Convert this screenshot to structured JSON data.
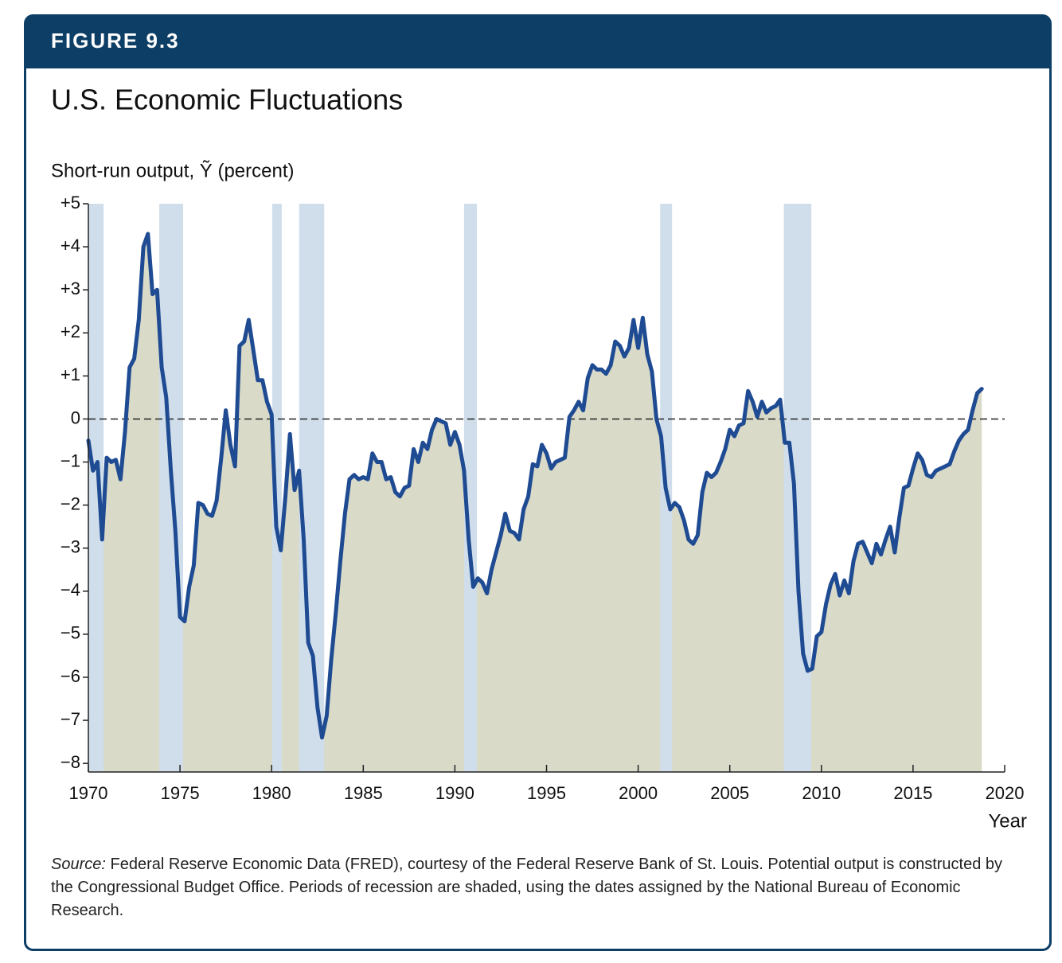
{
  "chart_data": {
    "type": "line",
    "figure_label": "FIGURE 9.3",
    "title": "U.S. Economic Fluctuations",
    "y_label": "Short-run output, Ỹ (percent)",
    "x_label": "Year",
    "source_label": "Source:",
    "source_note": "Federal Reserve Economic Data (FRED), courtesy of the Federal Reserve Bank of St. Louis. Potential output is constructed by the Congressional Budget Office. Periods of recession are shaded, using the dates assigned by the National Bureau of Economic Research.",
    "xlim": [
      1970,
      2020
    ],
    "xticks": [
      1970,
      1975,
      1980,
      1985,
      1990,
      1995,
      2000,
      2005,
      2010,
      2015,
      2020
    ],
    "ylim": [
      -8.2,
      5
    ],
    "yticks": [
      {
        "value": 5,
        "label": "+5"
      },
      {
        "value": 4,
        "label": "+4"
      },
      {
        "value": 3,
        "label": "+3"
      },
      {
        "value": 2,
        "label": "+2"
      },
      {
        "value": 1,
        "label": "+1"
      },
      0,
      {
        "value": -1,
        "label": "−1"
      },
      {
        "value": -2,
        "label": "−2"
      },
      {
        "value": -3,
        "label": "−3"
      },
      {
        "value": -4,
        "label": "−4"
      },
      {
        "value": -5,
        "label": "−5"
      },
      {
        "value": -6,
        "label": "−6"
      },
      {
        "value": -7,
        "label": "−7"
      },
      {
        "value": -8,
        "label": "−8"
      }
    ],
    "recessions": [
      [
        1970,
        1970.83
      ],
      [
        1973.87,
        1975.17
      ],
      [
        1980.03,
        1980.55
      ],
      [
        1981.5,
        1982.87
      ],
      [
        1990.5,
        1991.2
      ],
      [
        2001.2,
        2001.85
      ],
      [
        2007.95,
        2009.45
      ]
    ],
    "recession_color": "#cfdeea",
    "area_color": "#d9dac8",
    "color": "#1f4b93",
    "x": [
      1970,
      1970.25,
      1970.5,
      1970.75,
      1971,
      1971.25,
      1971.5,
      1971.75,
      1972,
      1972.25,
      1972.5,
      1972.75,
      1973,
      1973.25,
      1973.5,
      1973.75,
      1974,
      1974.25,
      1974.5,
      1974.75,
      1975,
      1975.25,
      1975.5,
      1975.75,
      1976,
      1976.25,
      1976.5,
      1976.75,
      1977,
      1977.25,
      1977.5,
      1977.75,
      1978,
      1978.25,
      1978.5,
      1978.75,
      1979,
      1979.25,
      1979.5,
      1979.75,
      1980,
      1980.25,
      1980.5,
      1980.75,
      1981,
      1981.25,
      1981.5,
      1981.75,
      1982,
      1982.25,
      1982.5,
      1982.75,
      1983,
      1983.25,
      1983.5,
      1983.75,
      1984,
      1984.25,
      1984.5,
      1984.75,
      1985,
      1985.25,
      1985.5,
      1985.75,
      1986,
      1986.25,
      1986.5,
      1986.75,
      1987,
      1987.25,
      1987.5,
      1987.75,
      1988,
      1988.25,
      1988.5,
      1988.75,
      1989,
      1989.25,
      1989.5,
      1989.75,
      1990,
      1990.25,
      1990.5,
      1990.75,
      1991,
      1991.25,
      1991.5,
      1991.75,
      1992,
      1992.25,
      1992.5,
      1992.75,
      1993,
      1993.25,
      1993.5,
      1993.75,
      1994,
      1994.25,
      1994.5,
      1994.75,
      1995,
      1995.25,
      1995.5,
      1995.75,
      1996,
      1996.25,
      1996.5,
      1996.75,
      1997,
      1997.25,
      1997.5,
      1997.75,
      1998,
      1998.25,
      1998.5,
      1998.75,
      1999,
      1999.25,
      1999.5,
      1999.75,
      2000,
      2000.25,
      2000.5,
      2000.75,
      2001,
      2001.25,
      2001.5,
      2001.75,
      2002,
      2002.25,
      2002.5,
      2002.75,
      2003,
      2003.25,
      2003.5,
      2003.75,
      2004,
      2004.25,
      2004.5,
      2004.75,
      2005,
      2005.25,
      2005.5,
      2005.75,
      2006,
      2006.25,
      2006.5,
      2006.75,
      2007,
      2007.25,
      2007.5,
      2007.75,
      2008,
      2008.25,
      2008.5,
      2008.75,
      2009,
      2009.25,
      2009.5,
      2009.75,
      2010,
      2010.25,
      2010.5,
      2010.75,
      2011,
      2011.25,
      2011.5,
      2011.75,
      2012,
      2012.25,
      2012.5,
      2012.75,
      2013,
      2013.25,
      2013.5,
      2013.75,
      2014,
      2014.25,
      2014.5,
      2014.75,
      2015,
      2015.25,
      2015.5,
      2015.75,
      2016,
      2016.25,
      2016.5,
      2016.75,
      2017,
      2017.25,
      2017.5,
      2017.75,
      2018,
      2018.25,
      2018.5,
      2018.75
    ],
    "values": [
      -0.5,
      -1.2,
      -1.0,
      -2.8,
      -0.9,
      -1.0,
      -0.95,
      -1.4,
      -0.3,
      1.2,
      1.4,
      2.3,
      4.0,
      4.3,
      2.9,
      3.0,
      1.2,
      0.5,
      -1.2,
      -2.6,
      -4.6,
      -4.7,
      -3.9,
      -3.4,
      -1.95,
      -2.0,
      -2.2,
      -2.25,
      -1.9,
      -0.9,
      0.2,
      -0.6,
      -1.1,
      1.7,
      1.8,
      2.3,
      1.6,
      0.9,
      0.9,
      0.4,
      0.1,
      -2.5,
      -3.05,
      -1.8,
      -0.35,
      -1.65,
      -1.2,
      -2.8,
      -5.2,
      -5.5,
      -6.7,
      -7.4,
      -6.9,
      -5.6,
      -4.5,
      -3.3,
      -2.2,
      -1.4,
      -1.3,
      -1.4,
      -1.35,
      -1.4,
      -0.8,
      -1.0,
      -1.0,
      -1.4,
      -1.35,
      -1.7,
      -1.8,
      -1.6,
      -1.55,
      -0.7,
      -1.0,
      -0.55,
      -0.7,
      -0.25,
      0.0,
      -0.05,
      -0.1,
      -0.6,
      -0.3,
      -0.6,
      -1.2,
      -2.8,
      -3.9,
      -3.7,
      -3.8,
      -4.05,
      -3.5,
      -3.1,
      -2.7,
      -2.2,
      -2.6,
      -2.65,
      -2.8,
      -2.1,
      -1.8,
      -1.05,
      -1.1,
      -0.6,
      -0.8,
      -1.15,
      -1.0,
      -0.95,
      -0.9,
      0.05,
      0.2,
      0.4,
      0.2,
      0.95,
      1.25,
      1.15,
      1.15,
      1.05,
      1.25,
      1.8,
      1.7,
      1.45,
      1.65,
      2.3,
      1.65,
      2.35,
      1.5,
      1.1,
      0.0,
      -0.4,
      -1.6,
      -2.1,
      -1.95,
      -2.05,
      -2.35,
      -2.8,
      -2.9,
      -2.7,
      -1.7,
      -1.25,
      -1.35,
      -1.25,
      -1.0,
      -0.7,
      -0.25,
      -0.4,
      -0.15,
      -0.1,
      0.65,
      0.4,
      0.05,
      0.4,
      0.15,
      0.25,
      0.3,
      0.45,
      -0.55,
      -0.55,
      -1.5,
      -4.0,
      -5.45,
      -5.85,
      -5.8,
      -5.05,
      -4.95,
      -4.3,
      -3.85,
      -3.6,
      -4.1,
      -3.75,
      -4.05,
      -3.3,
      -2.9,
      -2.85,
      -3.1,
      -3.35,
      -2.9,
      -3.15,
      -2.8,
      -2.5,
      -3.1,
      -2.3,
      -1.6,
      -1.55,
      -1.15,
      -0.8,
      -0.95,
      -1.3,
      -1.35,
      -1.2,
      -1.15,
      -1.1,
      -1.05,
      -0.75,
      -0.5,
      -0.35,
      -0.25,
      0.2,
      0.6,
      0.7
    ]
  }
}
